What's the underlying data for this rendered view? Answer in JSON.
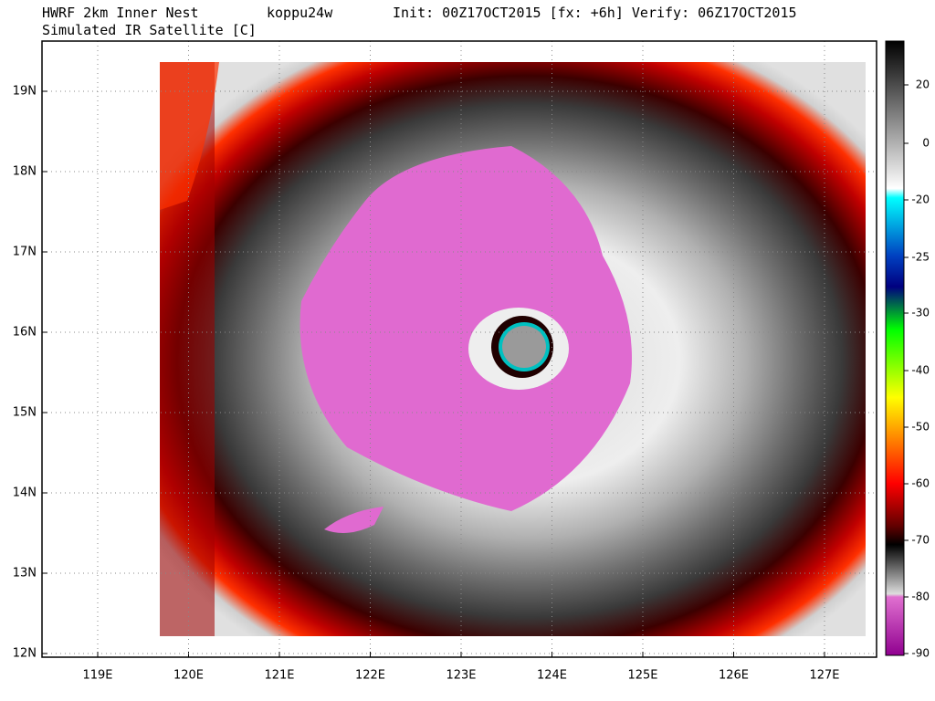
{
  "header": {
    "model": "HWRF 2km Inner Nest",
    "storm": "koppu24w",
    "times": "Init: 00Z17OCT2015 [fx: +6h] Verify: 06Z17OCT2015",
    "subtitle": "Simulated IR Satellite [C]"
  },
  "map": {
    "lon_ticks": [
      {
        "value": 119,
        "label": "119E"
      },
      {
        "value": 120,
        "label": "120E"
      },
      {
        "value": 121,
        "label": "121E"
      },
      {
        "value": 122,
        "label": "122E"
      },
      {
        "value": 123,
        "label": "123E"
      },
      {
        "value": 124,
        "label": "124E"
      },
      {
        "value": 125,
        "label": "125E"
      },
      {
        "value": 126,
        "label": "126E"
      },
      {
        "value": 127,
        "label": "127E"
      }
    ],
    "lat_ticks": [
      {
        "value": 12,
        "label": "12N"
      },
      {
        "value": 13,
        "label": "13N"
      },
      {
        "value": 14,
        "label": "14N"
      },
      {
        "value": 15,
        "label": "15N"
      },
      {
        "value": 16,
        "label": "16N"
      },
      {
        "value": 17,
        "label": "17N"
      },
      {
        "value": 18,
        "label": "18N"
      },
      {
        "value": 19,
        "label": "19N"
      }
    ]
  },
  "colorbar": {
    "ticks": [
      20,
      0,
      -20,
      -25,
      -30,
      -40,
      -50,
      -60,
      -70,
      -80,
      -90
    ]
  }
}
